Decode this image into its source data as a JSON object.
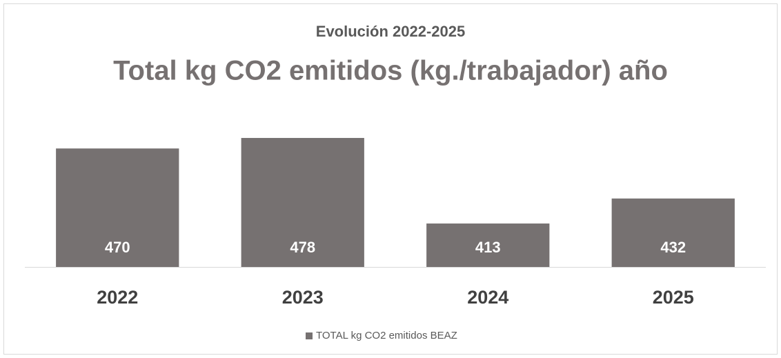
{
  "chart_data": {
    "type": "bar",
    "subtitle": "Evolución 2022-2025",
    "title": "Total kg CO2 emitidos (kg./trabajador) año",
    "categories": [
      "2022",
      "2023",
      "2024",
      "2025"
    ],
    "series": [
      {
        "name": "TOTAL kg CO2 emitidos BEAZ",
        "color": "#767171",
        "values": [
          470,
          478,
          413,
          432
        ]
      }
    ],
    "ylim": [
      380,
      500
    ],
    "legend": "bottom"
  }
}
